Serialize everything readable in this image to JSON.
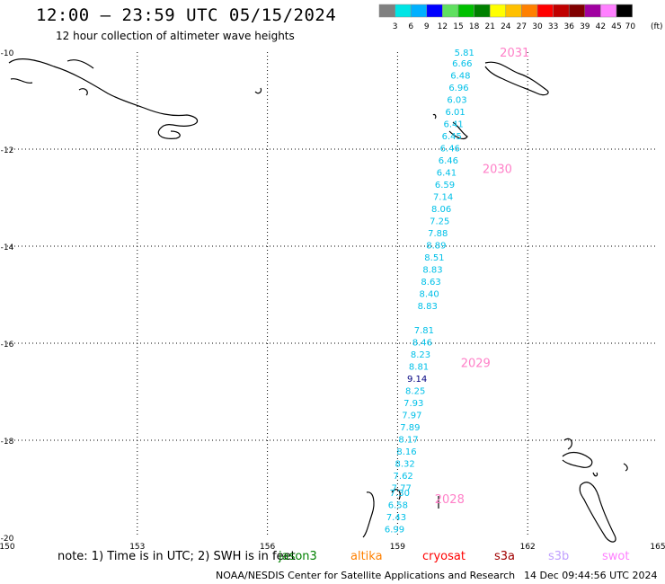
{
  "header": {
    "title": "12:00 – 23:59 UTC 05/15/2024",
    "subtitle": "12 hour collection of altimeter wave heights"
  },
  "legend": {
    "labels": [
      "3",
      "6",
      "9",
      "12",
      "15",
      "18",
      "21",
      "24",
      "27",
      "30",
      "33",
      "36",
      "39",
      "42",
      "45",
      "70"
    ],
    "unit": "(ft)",
    "colors": [
      "#808080",
      "#00e5e5",
      "#00b0ff",
      "#0000ff",
      "#60e060",
      "#00c000",
      "#008000",
      "#ffff00",
      "#ffc000",
      "#ff8000",
      "#ff0000",
      "#c00000",
      "#800000",
      "#a000a0",
      "#ff80ff",
      "#000000"
    ]
  },
  "map": {
    "lon_min": 150,
    "lon_max": 165,
    "lat_min": -20,
    "lat_max": -10,
    "x_ticks": [
      "150",
      "153",
      "156",
      "159",
      "162",
      "165"
    ],
    "y_ticks": [
      "-10",
      "-12",
      "-14",
      "-16",
      "-18",
      "-20"
    ],
    "x_tick_values": [
      150,
      153,
      156,
      159,
      162,
      165
    ],
    "y_tick_values": [
      -10,
      -12,
      -14,
      -16,
      -18,
      -20
    ],
    "satellite_color": "#00c0e8",
    "highlight_color": "#000080",
    "time_label_color": "#ff80c8"
  },
  "observations": [
    {
      "lat": -10.0,
      "lon": 160.54,
      "value": "5.81"
    },
    {
      "lat": -10.22,
      "lon": 160.49,
      "value": "6.66"
    },
    {
      "lat": -10.47,
      "lon": 160.45,
      "value": "6.48"
    },
    {
      "lat": -10.72,
      "lon": 160.41,
      "value": "6.96"
    },
    {
      "lat": -10.97,
      "lon": 160.37,
      "value": "6.03"
    },
    {
      "lat": -11.22,
      "lon": 160.33,
      "value": "6.01"
    },
    {
      "lat": -11.47,
      "lon": 160.29,
      "value": "6.41"
    },
    {
      "lat": -11.72,
      "lon": 160.25,
      "value": "6.45"
    },
    {
      "lat": -11.97,
      "lon": 160.21,
      "value": "6.46"
    },
    {
      "lat": -12.22,
      "lon": 160.17,
      "value": "6.46"
    },
    {
      "lat": -12.47,
      "lon": 160.13,
      "value": "6.41"
    },
    {
      "lat": -12.72,
      "lon": 160.09,
      "value": "6.59"
    },
    {
      "lat": -12.97,
      "lon": 160.05,
      "value": "7.14"
    },
    {
      "lat": -13.22,
      "lon": 160.01,
      "value": "8.06"
    },
    {
      "lat": -13.47,
      "lon": 159.97,
      "value": "7.25"
    },
    {
      "lat": -13.72,
      "lon": 159.93,
      "value": "7.88"
    },
    {
      "lat": -13.97,
      "lon": 159.89,
      "value": "8.89"
    },
    {
      "lat": -14.22,
      "lon": 159.85,
      "value": "8.51"
    },
    {
      "lat": -14.47,
      "lon": 159.81,
      "value": "8.83"
    },
    {
      "lat": -14.72,
      "lon": 159.77,
      "value": "8.63"
    },
    {
      "lat": -14.97,
      "lon": 159.73,
      "value": "8.40"
    },
    {
      "lat": -15.22,
      "lon": 159.69,
      "value": "8.83"
    },
    {
      "lat": -15.72,
      "lon": 159.61,
      "value": "7.81"
    },
    {
      "lat": -15.97,
      "lon": 159.57,
      "value": "8.46"
    },
    {
      "lat": -16.22,
      "lon": 159.53,
      "value": "8.23"
    },
    {
      "lat": -16.47,
      "lon": 159.49,
      "value": "8.81"
    },
    {
      "lat": -16.72,
      "lon": 159.45,
      "value": "9.14",
      "highlight": true
    },
    {
      "lat": -16.97,
      "lon": 159.41,
      "value": "8.25"
    },
    {
      "lat": -17.22,
      "lon": 159.37,
      "value": "7.93"
    },
    {
      "lat": -17.47,
      "lon": 159.33,
      "value": "7.97"
    },
    {
      "lat": -17.72,
      "lon": 159.29,
      "value": "7.89"
    },
    {
      "lat": -17.97,
      "lon": 159.25,
      "value": "8.17"
    },
    {
      "lat": -18.22,
      "lon": 159.21,
      "value": "8.16"
    },
    {
      "lat": -18.47,
      "lon": 159.17,
      "value": "8.32"
    },
    {
      "lat": -18.72,
      "lon": 159.13,
      "value": "7.62"
    },
    {
      "lat": -18.97,
      "lon": 159.09,
      "value": "7.77"
    },
    {
      "lat": -19.07,
      "lon": 159.05,
      "value": "7.30"
    },
    {
      "lat": -19.32,
      "lon": 159.01,
      "value": "6.58"
    },
    {
      "lat": -19.57,
      "lon": 158.97,
      "value": "7.43"
    },
    {
      "lat": -19.82,
      "lon": 158.93,
      "value": "6.99"
    }
  ],
  "time_labels": [
    {
      "lat": -10.0,
      "lon": 161.7,
      "text": "2031"
    },
    {
      "lat": -12.4,
      "lon": 161.3,
      "text": "2030"
    },
    {
      "lat": -16.4,
      "lon": 160.8,
      "text": "2029"
    },
    {
      "lat": -19.2,
      "lon": 160.2,
      "text": "2028"
    }
  ],
  "footer": {
    "note": "note:  1) Time is in UTC;  2) SWH is in feet",
    "satellites": [
      {
        "name": "jason3",
        "color": "#008000"
      },
      {
        "name": "altika",
        "color": "#ff8000"
      },
      {
        "name": "cryosat",
        "color": "#ff0000"
      },
      {
        "name": "s3a",
        "color": "#a00000"
      },
      {
        "name": "s3b",
        "color": "#c0a0ff"
      },
      {
        "name": "swot",
        "color": "#ff80ff"
      }
    ],
    "credit": "NOAA/NESDIS Center for Satellite Applications and Research",
    "timestamp": "14 Dec 09:44:56 UTC 2024"
  }
}
